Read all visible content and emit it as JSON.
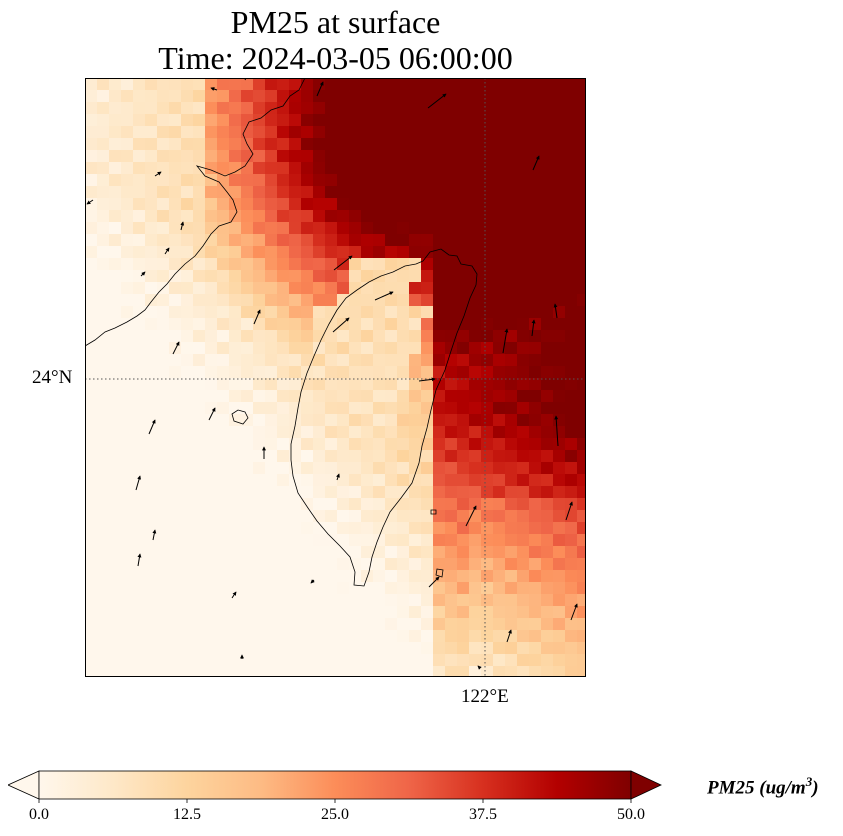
{
  "title_line1": "PM25 at surface",
  "title_line2": "Time: 2024-03-05 06:00:00",
  "colors": {
    "cmap": [
      "#fff7ec",
      "#fee8c8",
      "#fdd49e",
      "#fdbb84",
      "#fc8d59",
      "#ef6548",
      "#d7301f",
      "#b30000",
      "#7f0000"
    ],
    "coastline": "#000000",
    "gridline": "#555555"
  },
  "chart_data": {
    "type": "heatmap",
    "projection": "lat-lon map with coastlines and wind vectors",
    "variable": "PM25",
    "units": "ug/m^3",
    "xlim": [
      118.0,
      123.0
    ],
    "ylim": [
      21.0,
      27.0
    ],
    "gridlines": {
      "lat": [
        24
      ],
      "lon": [
        122
      ]
    },
    "lat_tick_label": "24°N",
    "lon_tick_label": "122°E",
    "colorbar": {
      "min": 0.0,
      "max": 50.0,
      "extend": "both",
      "ticks": [
        "0.0",
        "12.5",
        "25.0",
        "37.5",
        "50.0"
      ],
      "label_main": "PM25 (ug/m",
      "label_sup": "3",
      "label_end": ")"
    }
  }
}
